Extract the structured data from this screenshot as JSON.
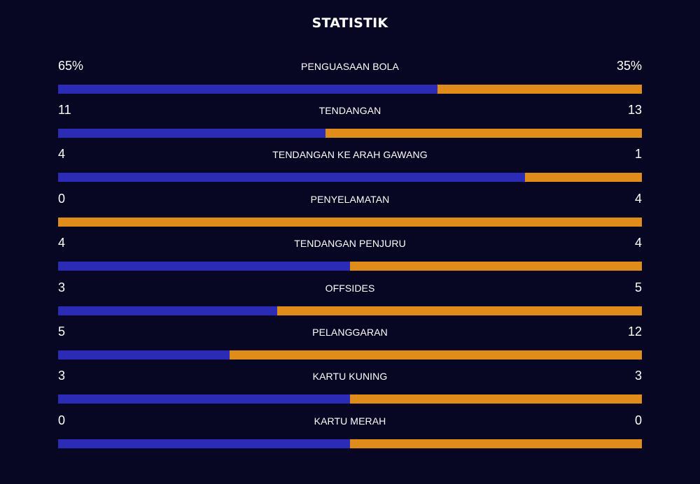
{
  "title": "STATISTIK",
  "colors": {
    "background": "#070723",
    "home": "#2c2bb6",
    "away": "#e08c1b",
    "text": "#ffffff"
  },
  "stats": [
    {
      "label": "PENGUASAAN BOLA",
      "home": "65%",
      "away": "35%",
      "home_share": 0.65
    },
    {
      "label": "TENDANGAN",
      "home": "11",
      "away": "13",
      "home_share": 0.458
    },
    {
      "label": "TENDANGAN KE ARAH GAWANG",
      "home": "4",
      "away": "1",
      "home_share": 0.8
    },
    {
      "label": "PENYELAMATAN",
      "home": "0",
      "away": "4",
      "home_share": 0
    },
    {
      "label": "TENDANGAN PENJURU",
      "home": "4",
      "away": "4",
      "home_share": 0.5
    },
    {
      "label": "OFFSIDES",
      "home": "3",
      "away": "5",
      "home_share": 0.375
    },
    {
      "label": "PELANGGARAN",
      "home": "5",
      "away": "12",
      "home_share": 0.294
    },
    {
      "label": "KARTU KUNING",
      "home": "3",
      "away": "3",
      "home_share": 0.5
    },
    {
      "label": "KARTU MERAH",
      "home": "0",
      "away": "0",
      "home_share": 0.5
    }
  ]
}
